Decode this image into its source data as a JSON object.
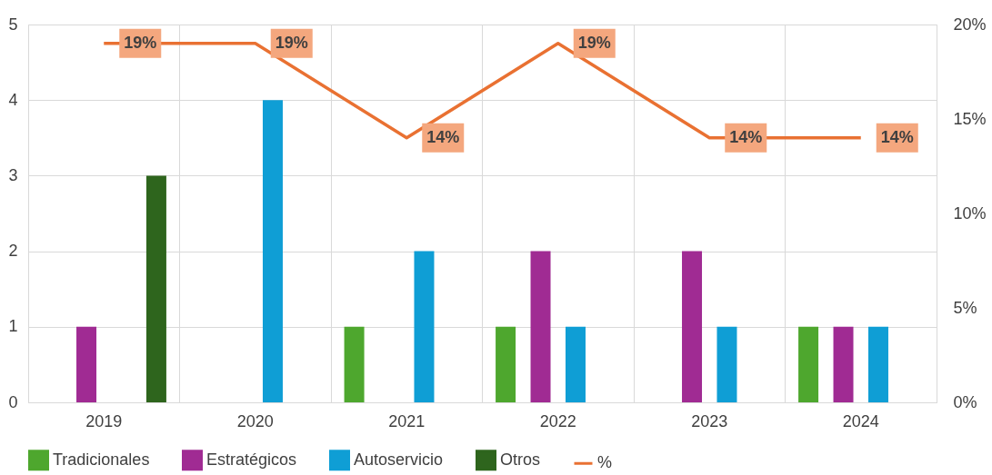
{
  "chart_data": {
    "type": "bar",
    "categories": [
      "2019",
      "2020",
      "2021",
      "2022",
      "2023",
      "2024"
    ],
    "series": [
      {
        "name": "Tradicionales",
        "color": "#4ea72e",
        "values": [
          0,
          0,
          1,
          1,
          0,
          1
        ]
      },
      {
        "name": "Estratégicos",
        "color": "#a02b93",
        "values": [
          1,
          0,
          0,
          2,
          2,
          1
        ]
      },
      {
        "name": "Autoservicio",
        "color": "#0f9ed5",
        "values": [
          0,
          4,
          2,
          1,
          1,
          1
        ]
      },
      {
        "name": "Otros",
        "color": "#2e651d",
        "values": [
          3,
          0,
          0,
          0,
          0,
          0
        ]
      },
      {
        "name": "%",
        "type": "line",
        "axis": "y2",
        "color": "#e97132",
        "values": [
          19,
          19,
          14,
          19,
          14,
          14
        ],
        "value_labels": [
          "19%",
          "19%",
          "14%",
          "19%",
          "14%",
          "14%"
        ]
      }
    ],
    "ylim": [
      0,
      5
    ],
    "yticks": [
      0,
      1,
      2,
      3,
      4,
      5
    ],
    "y2lim": [
      0,
      20
    ],
    "y2ticks": [
      {
        "value": 0,
        "label": "0%"
      },
      {
        "value": 5,
        "label": "5%"
      },
      {
        "value": 10,
        "label": "10%"
      },
      {
        "value": 15,
        "label": "15%"
      },
      {
        "value": 20,
        "label": "20%"
      }
    ],
    "grid": true,
    "legend": "bottom"
  }
}
